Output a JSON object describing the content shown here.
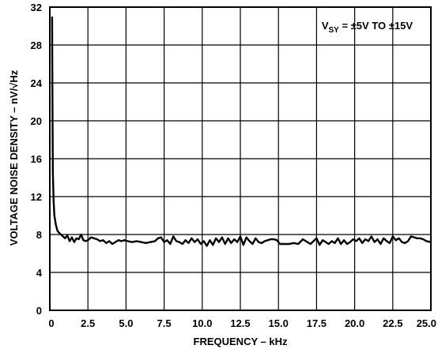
{
  "chart_data": {
    "type": "line",
    "xlabel": "FREQUENCY – kHz",
    "ylabel": "VOLTAGE NOISE DENSITY – nV/√Hz",
    "xlim": [
      0,
      25
    ],
    "ylim": [
      0,
      32
    ],
    "x_ticks": [
      0,
      2.5,
      5.0,
      7.5,
      10.0,
      12.5,
      15.0,
      17.5,
      20.0,
      22.5,
      25.0
    ],
    "x_tick_labels": [
      "0",
      "2.5",
      "5.0",
      "7.5",
      "10.0",
      "12.5",
      "15.0",
      "17.5",
      "20.0",
      "22.5",
      "25.0"
    ],
    "y_ticks": [
      0,
      4,
      8,
      12,
      16,
      20,
      24,
      28,
      32
    ],
    "y_tick_labels": [
      "0",
      "4",
      "8",
      "12",
      "16",
      "20",
      "24",
      "28",
      "32"
    ],
    "grid": true,
    "annotation": {
      "base": "V",
      "subscript": "SY",
      "rest": " = ±5V TO ±15V",
      "position": "top-right"
    },
    "series": [
      {
        "x": [
          0.15,
          0.16,
          0.18,
          0.2,
          0.25,
          0.3,
          0.4,
          0.5,
          0.65,
          0.8,
          1.0,
          1.15,
          1.3,
          1.45,
          1.6,
          1.75,
          1.9,
          2.05,
          2.2,
          2.35,
          2.5,
          2.7,
          2.9,
          3.1,
          3.3,
          3.5,
          3.7,
          3.9,
          4.1,
          4.3,
          4.5,
          4.7,
          4.9,
          5.1,
          5.4,
          5.7,
          6.0,
          6.3,
          6.6,
          6.9,
          7.1,
          7.3,
          7.5,
          7.7,
          7.9,
          8.1,
          8.3,
          8.5,
          8.7,
          8.9,
          9.1,
          9.3,
          9.5,
          9.7,
          9.9,
          10.1,
          10.3,
          10.5,
          10.7,
          10.9,
          11.1,
          11.3,
          11.5,
          11.7,
          11.9,
          12.1,
          12.3,
          12.5,
          12.7,
          12.9,
          13.1,
          13.3,
          13.5,
          13.7,
          13.9,
          14.1,
          14.3,
          14.5,
          14.7,
          14.9,
          15.1,
          15.4,
          15.7,
          16.0,
          16.3,
          16.6,
          16.9,
          17.1,
          17.3,
          17.5,
          17.7,
          17.9,
          18.1,
          18.3,
          18.5,
          18.7,
          18.9,
          19.1,
          19.3,
          19.5,
          19.7,
          19.9,
          20.1,
          20.3,
          20.5,
          20.7,
          20.9,
          21.1,
          21.3,
          21.5,
          21.7,
          21.9,
          22.1,
          22.3,
          22.5,
          22.7,
          22.9,
          23.1,
          23.3,
          23.5,
          23.7,
          23.9,
          24.1,
          24.3,
          24.5,
          24.7,
          25.0
        ],
        "y": [
          31.0,
          27.0,
          20.0,
          14.5,
          11.5,
          10.0,
          9.0,
          8.4,
          8.1,
          7.9,
          7.6,
          7.9,
          7.3,
          7.7,
          7.2,
          7.6,
          7.5,
          8.0,
          7.4,
          7.3,
          7.4,
          7.7,
          7.6,
          7.5,
          7.3,
          7.4,
          7.1,
          7.3,
          7.0,
          7.2,
          7.4,
          7.3,
          7.4,
          7.3,
          7.2,
          7.3,
          7.2,
          7.1,
          7.2,
          7.3,
          7.6,
          7.7,
          7.2,
          7.4,
          7.0,
          7.8,
          7.3,
          7.2,
          7.0,
          7.4,
          7.1,
          7.6,
          7.2,
          7.5,
          7.0,
          7.3,
          6.8,
          7.4,
          6.9,
          7.6,
          7.2,
          7.7,
          7.0,
          7.6,
          7.1,
          7.5,
          7.2,
          7.8,
          6.9,
          7.7,
          7.3,
          7.0,
          7.6,
          7.2,
          7.1,
          7.3,
          7.4,
          7.5,
          7.5,
          7.4,
          7.0,
          7.0,
          7.0,
          7.1,
          7.0,
          7.5,
          7.2,
          7.0,
          7.3,
          7.6,
          6.9,
          7.4,
          7.2,
          7.0,
          7.3,
          7.1,
          7.6,
          7.0,
          7.4,
          7.0,
          7.2,
          7.5,
          7.3,
          7.6,
          7.1,
          7.5,
          7.3,
          7.8,
          7.2,
          7.5,
          7.0,
          7.6,
          7.3,
          7.1,
          7.8,
          7.4,
          7.6,
          7.2,
          7.1,
          7.3,
          7.8,
          7.7,
          7.6,
          7.6,
          7.5,
          7.3,
          7.2
        ]
      }
    ]
  },
  "colors": {
    "line": "#000000",
    "grid": "#000000",
    "background": "#ffffff"
  }
}
